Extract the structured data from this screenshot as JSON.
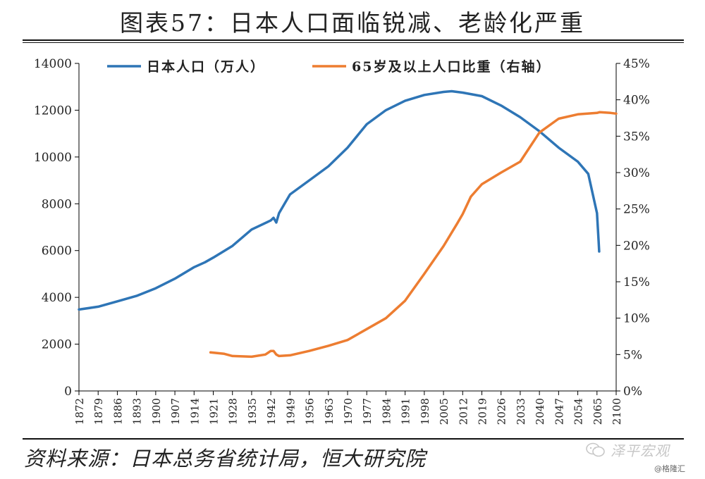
{
  "title": "图表57：日本人口面临锐减、老龄化严重",
  "source": "资料来源：日本总务省统计局，恒大研究院",
  "watermark": "泽平宏观",
  "watermark_sub": "@格隆汇",
  "colors": {
    "population": "#2e75b6",
    "elderly": "#ed7d31",
    "axis": "#000000"
  },
  "chart_data": {
    "type": "line",
    "x_ticks": [
      "1872",
      "1879",
      "1886",
      "1893",
      "1900",
      "1907",
      "1914",
      "1921",
      "1928",
      "1935",
      "1942",
      "1949",
      "1956",
      "1963",
      "1970",
      "1977",
      "1984",
      "1991",
      "1998",
      "2005",
      "2012",
      "2019",
      "2026",
      "2033",
      "2040",
      "2047",
      "2054",
      "2065",
      "2100"
    ],
    "y_left": {
      "min": 0,
      "max": 14000,
      "ticks": [
        "0",
        "2000",
        "4000",
        "6000",
        "8000",
        "10000",
        "12000",
        "14000"
      ]
    },
    "y_right": {
      "min": 0,
      "max": 45,
      "ticks": [
        "0%",
        "5%",
        "10%",
        "15%",
        "20%",
        "25%",
        "30%",
        "35%",
        "40%",
        "45%"
      ]
    },
    "legend_position": "top",
    "series": [
      {
        "name": "日本人口（万人）",
        "axis": "left",
        "points": [
          [
            1872,
            3480
          ],
          [
            1879,
            3600
          ],
          [
            1886,
            3830
          ],
          [
            1893,
            4060
          ],
          [
            1900,
            4390
          ],
          [
            1907,
            4800
          ],
          [
            1914,
            5290
          ],
          [
            1918,
            5500
          ],
          [
            1921,
            5700
          ],
          [
            1928,
            6200
          ],
          [
            1935,
            6900
          ],
          [
            1942,
            7290
          ],
          [
            1943,
            7400
          ],
          [
            1944,
            7200
          ],
          [
            1945,
            7600
          ],
          [
            1947,
            8000
          ],
          [
            1949,
            8400
          ],
          [
            1956,
            9000
          ],
          [
            1963,
            9600
          ],
          [
            1970,
            10400
          ],
          [
            1977,
            11400
          ],
          [
            1984,
            12000
          ],
          [
            1991,
            12400
          ],
          [
            1998,
            12650
          ],
          [
            2005,
            12780
          ],
          [
            2008,
            12810
          ],
          [
            2012,
            12750
          ],
          [
            2019,
            12600
          ],
          [
            2026,
            12200
          ],
          [
            2033,
            11700
          ],
          [
            2040,
            11100
          ],
          [
            2047,
            10400
          ],
          [
            2054,
            9800
          ],
          [
            2060,
            9280
          ],
          [
            2065,
            7600
          ],
          [
            2068,
            6400
          ],
          [
            2069,
            5960
          ]
        ]
      },
      {
        "name": "65岁及以上人口比重（右轴）",
        "axis": "right",
        "points": [
          [
            1920,
            5.3
          ],
          [
            1925,
            5.1
          ],
          [
            1928,
            4.8
          ],
          [
            1935,
            4.7
          ],
          [
            1940,
            5.0
          ],
          [
            1942,
            5.5
          ],
          [
            1943,
            5.5
          ],
          [
            1944,
            5.0
          ],
          [
            1945,
            4.8
          ],
          [
            1949,
            4.9
          ],
          [
            1956,
            5.5
          ],
          [
            1963,
            6.2
          ],
          [
            1970,
            7.0
          ],
          [
            1977,
            8.5
          ],
          [
            1984,
            10.0
          ],
          [
            1991,
            12.4
          ],
          [
            1998,
            16.1
          ],
          [
            2005,
            19.9
          ],
          [
            2010,
            23.0
          ],
          [
            2012,
            24.3
          ],
          [
            2015,
            26.7
          ],
          [
            2019,
            28.4
          ],
          [
            2026,
            30.0
          ],
          [
            2033,
            31.5
          ],
          [
            2040,
            35.5
          ],
          [
            2047,
            37.4
          ],
          [
            2054,
            38.0
          ],
          [
            2065,
            38.2
          ],
          [
            2070,
            38.3
          ],
          [
            2090,
            38.2
          ],
          [
            2100,
            38.1
          ]
        ]
      }
    ]
  }
}
